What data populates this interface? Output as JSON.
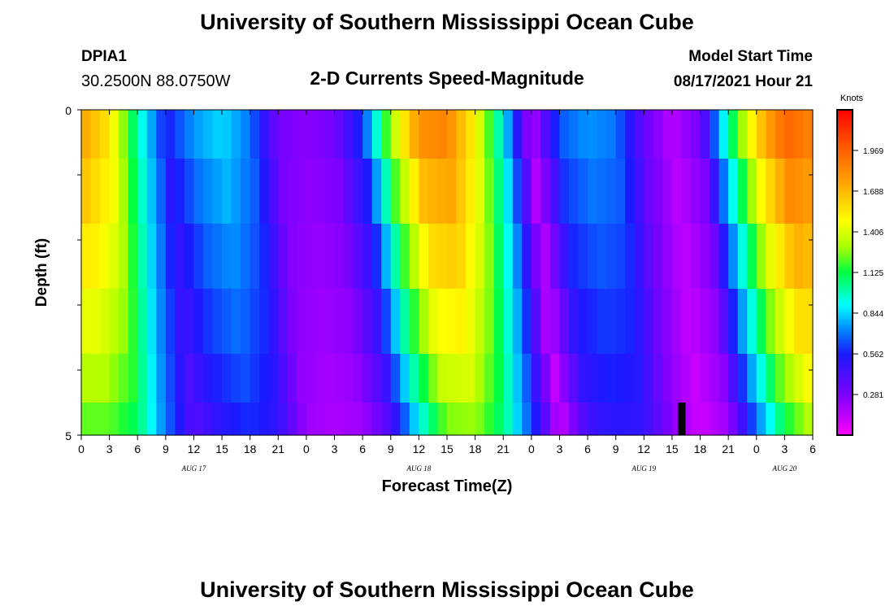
{
  "header": {
    "title_top": "University of Southern Mississippi Ocean Cube",
    "title_bottom": "University of Southern Mississippi Ocean Cube",
    "station_id": "DPIA1",
    "coordinates": "30.2500N  88.0750W",
    "plot_title": "2-D Currents Speed-Magnitude",
    "model_start_label": "Model Start Time",
    "model_start_value": "08/17/2021 Hour 21"
  },
  "chart_data": {
    "type": "heatmap",
    "title": "2-D Currents Speed-Magnitude",
    "xlabel": "Forecast Time(Z)",
    "ylabel": "Depth (ft)",
    "ylim": [
      0,
      5
    ],
    "y_tick_labels": [
      "0",
      "5"
    ],
    "x_tick_labels": [
      "0",
      "3",
      "6",
      "9",
      "12",
      "15",
      "18",
      "21",
      "0",
      "3",
      "6",
      "9",
      "12",
      "15",
      "18",
      "21",
      "0",
      "3",
      "6",
      "9",
      "12",
      "15",
      "18",
      "21",
      "0",
      "3",
      "6"
    ],
    "x_hours": [
      0,
      3,
      6,
      9,
      12,
      15,
      18,
      21,
      24,
      27,
      30,
      33,
      36,
      39,
      42,
      45,
      48,
      51,
      54,
      57,
      60,
      63,
      66,
      69,
      72,
      75,
      78
    ],
    "xlim_hours": [
      0,
      78
    ],
    "date_labels": [
      {
        "text": "AUG 17",
        "hour": 12
      },
      {
        "text": "AUG 18",
        "hour": 36
      },
      {
        "text": "AUG 19",
        "hour": 60
      },
      {
        "text": "AUG 20",
        "hour": 75
      }
    ],
    "depth_bands": [
      0.25,
      1.25,
      2.25,
      3.25,
      4.25,
      4.75
    ],
    "speed_profile_hours": [
      0,
      3,
      6,
      9,
      12,
      15,
      18,
      21,
      24,
      27,
      30,
      33,
      36,
      39,
      42,
      45,
      48,
      51,
      54,
      57,
      60,
      63,
      66,
      69,
      72,
      75,
      78
    ],
    "speed_profile_knots": [
      1.75,
      1.55,
      1.0,
      0.55,
      0.75,
      0.85,
      0.7,
      0.3,
      0.25,
      0.3,
      0.6,
      1.3,
      1.8,
      1.85,
      1.5,
      0.9,
      0.15,
      0.65,
      0.75,
      0.7,
      0.35,
      0.15,
      0.3,
      1.0,
      1.6,
      1.95,
      1.85
    ],
    "colorbar": {
      "label": "Knots",
      "min": 0,
      "max": 2.25,
      "tick_labels": [
        "1.969",
        "1.688",
        "1.406",
        "1.125",
        "0.844",
        "0.562",
        "0.281"
      ],
      "tick_values": [
        1.969,
        1.688,
        1.406,
        1.125,
        0.844,
        0.562,
        0.281
      ]
    },
    "marker": {
      "hour": 64.0,
      "depth_from": 4.5,
      "depth_to": 5.0,
      "color": "#000000"
    }
  }
}
